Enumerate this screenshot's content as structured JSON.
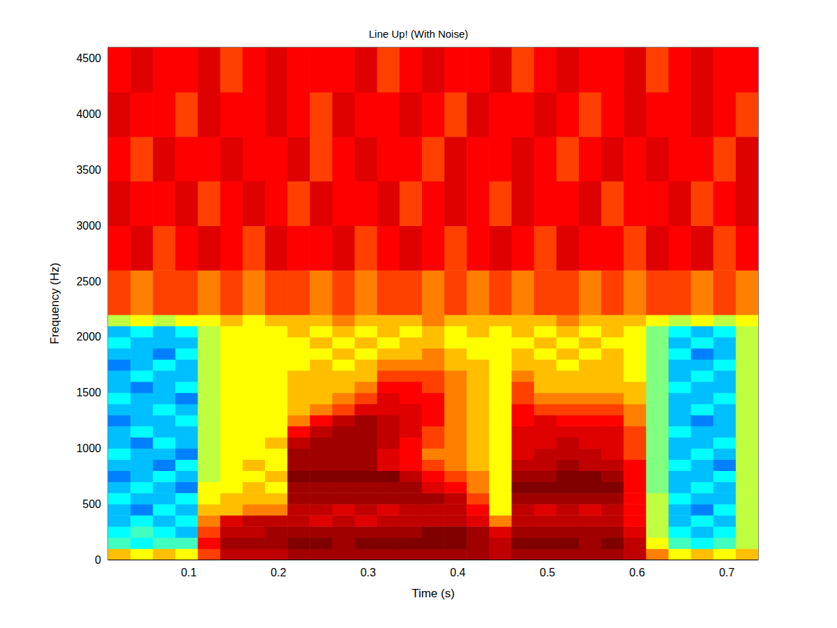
{
  "chart_data": {
    "type": "heatmap",
    "title": "Line Up! (With Noise)",
    "x_label": "Time (s)",
    "y_label": "Frequency (Hz)",
    "xlim": [
      0.01,
      0.735
    ],
    "xticks": [
      0.1,
      0.2,
      0.3,
      0.4,
      0.5,
      0.6,
      0.7
    ],
    "ylim": [
      0,
      4600
    ],
    "yticks": [
      0,
      500,
      1000,
      1500,
      2000,
      2500,
      3000,
      3500,
      4000,
      4500
    ],
    "grid": false,
    "color_range": [
      0,
      10
    ],
    "time_edges": [
      0.01,
      0.035,
      0.06,
      0.085,
      0.11,
      0.135,
      0.16,
      0.185,
      0.21,
      0.235,
      0.26,
      0.285,
      0.31,
      0.335,
      0.36,
      0.385,
      0.41,
      0.435,
      0.46,
      0.485,
      0.51,
      0.535,
      0.56,
      0.585,
      0.61,
      0.635,
      0.66,
      0.685,
      0.71,
      0.735
    ],
    "frequency_edges": [
      0,
      100,
      200,
      300,
      400,
      500,
      600,
      700,
      800,
      900,
      1000,
      1100,
      1200,
      1300,
      1400,
      1500,
      1600,
      1700,
      1800,
      1900,
      2000,
      2100,
      2200,
      2600,
      3000,
      3400,
      3800,
      4200,
      4600
    ],
    "cells": [
      [
        6.5,
        6,
        6.5,
        6,
        7.5,
        9,
        9,
        9,
        9.5,
        9.5,
        9.5,
        9.5,
        9.5,
        9.5,
        9.5,
        9.5,
        9.5,
        9,
        9.5,
        9.5,
        9.5,
        9.5,
        9.5,
        9,
        7,
        6,
        6.5,
        6,
        6.5
      ],
      [
        4.5,
        4,
        4.5,
        4.5,
        8,
        9.5,
        9.5,
        9.5,
        10,
        10,
        9.5,
        10,
        10,
        10,
        10,
        10,
        9.5,
        9,
        10,
        10,
        10,
        9.5,
        10,
        9,
        6,
        4.5,
        4,
        4.5,
        5.5
      ],
      [
        4,
        4.5,
        4,
        3.5,
        7.5,
        9,
        9,
        9.5,
        9.5,
        9.5,
        9.5,
        9.5,
        9.5,
        9.5,
        10,
        10,
        9.5,
        8.5,
        9.5,
        9.5,
        9.5,
        9.5,
        9.5,
        8.5,
        5.5,
        4,
        3.5,
        4,
        5.5
      ],
      [
        3.5,
        4,
        3.5,
        4,
        7,
        8.5,
        9,
        9,
        9,
        8.5,
        9,
        8.5,
        9,
        9,
        9,
        9,
        8.5,
        7,
        9,
        9,
        9,
        9,
        9,
        8,
        5.5,
        3.5,
        4,
        3.5,
        5.5
      ],
      [
        3.5,
        3,
        4,
        3.5,
        6.5,
        6.5,
        7,
        7,
        9,
        9,
        8.5,
        9,
        8.5,
        9,
        9,
        9,
        8,
        6,
        9,
        8.5,
        9,
        8.5,
        9,
        8,
        5.5,
        3.5,
        3,
        4,
        5.5
      ],
      [
        4,
        3.5,
        3.5,
        4,
        6,
        6.5,
        6.5,
        6.5,
        9.5,
        9.5,
        9.5,
        9.5,
        9.5,
        9.5,
        9.5,
        9,
        7.5,
        6,
        9.5,
        9.5,
        9.5,
        9.5,
        9.5,
        8,
        5.5,
        4,
        3.5,
        3.5,
        5.5
      ],
      [
        3.5,
        4,
        3.5,
        3,
        6,
        6,
        6.5,
        6,
        9.5,
        9.5,
        9.5,
        9.5,
        9.5,
        9.5,
        8.5,
        8,
        7,
        6,
        10,
        10,
        10,
        10,
        10,
        8,
        5,
        3.5,
        4,
        3.5,
        5.5
      ],
      [
        3,
        3.5,
        4,
        3.5,
        5.5,
        6,
        6,
        6.5,
        10,
        10,
        10,
        10,
        10,
        9,
        8,
        7.5,
        7,
        6,
        9.5,
        9.5,
        10,
        10,
        9.5,
        8,
        5,
        3.5,
        3.5,
        4,
        5.5
      ],
      [
        3.5,
        3.5,
        3,
        4,
        5.5,
        6,
        6.5,
        6,
        9.5,
        9.5,
        9.5,
        9.5,
        8.5,
        8,
        7.5,
        7,
        6.5,
        6,
        9,
        9,
        9.5,
        9,
        9,
        8,
        5,
        4,
        3.5,
        3,
        5.5
      ],
      [
        4,
        3.5,
        3.5,
        3,
        5.5,
        6,
        6,
        6,
        9.5,
        9.5,
        9.5,
        9.5,
        8.5,
        8,
        7,
        7,
        6.5,
        6,
        8.5,
        9,
        9,
        9,
        8.5,
        7.5,
        5,
        3.5,
        4,
        3.5,
        5.5
      ],
      [
        3.5,
        3,
        4,
        3.5,
        5.5,
        6,
        6,
        6.5,
        9,
        9.5,
        9.5,
        9.5,
        9,
        8,
        7.5,
        7,
        6.5,
        6,
        8.5,
        8.5,
        9,
        8.5,
        8.5,
        7.5,
        5,
        3.5,
        3.5,
        4,
        5.5
      ],
      [
        3.5,
        4,
        3.5,
        3.5,
        5.5,
        6,
        6,
        6,
        8,
        9,
        9.5,
        9.5,
        9,
        8.5,
        7.5,
        7,
        6.5,
        6,
        8.5,
        8.5,
        8.5,
        8.5,
        8.5,
        7.5,
        5,
        4,
        3.5,
        3.5,
        5.5
      ],
      [
        3,
        3.5,
        3.5,
        4,
        5.5,
        6,
        6,
        6,
        7,
        8,
        9,
        9.5,
        9,
        8.5,
        8,
        7,
        6.5,
        6,
        8,
        8.5,
        8,
        8,
        8,
        7,
        5,
        3.5,
        3,
        3.5,
        5.5
      ],
      [
        3.5,
        3.5,
        4,
        3.5,
        5.5,
        6,
        6,
        6,
        6.5,
        7,
        7.5,
        8.5,
        8.5,
        8.5,
        8,
        7,
        6.5,
        6,
        8,
        7.5,
        7.5,
        7.5,
        7.5,
        7,
        5,
        3.5,
        4,
        3.5,
        5.5
      ],
      [
        4,
        3.5,
        3.5,
        3,
        5.5,
        6,
        6,
        6,
        6.5,
        6.5,
        7,
        7.5,
        8.5,
        8,
        8,
        7,
        6.5,
        6,
        7.5,
        7,
        7,
        7,
        7,
        6.5,
        5,
        3.5,
        3.5,
        4,
        5.5
      ],
      [
        3.5,
        3,
        3.5,
        4,
        5.5,
        6,
        6,
        6,
        6.5,
        6.5,
        6.5,
        7,
        8,
        8,
        7.5,
        7,
        6.5,
        6,
        7.5,
        6.5,
        6.5,
        6.5,
        6.5,
        6.5,
        5,
        4,
        3.5,
        3.5,
        5.5
      ],
      [
        3.5,
        4,
        3.5,
        3.5,
        5.5,
        6,
        6,
        6,
        6.5,
        6.5,
        6.5,
        6.5,
        7.5,
        7.5,
        7.5,
        7,
        6.5,
        6,
        7,
        6.5,
        6.5,
        6.5,
        6.5,
        6,
        5,
        3.5,
        4,
        3.5,
        5.5
      ],
      [
        3,
        3.5,
        4,
        3.5,
        5.5,
        6,
        6,
        6,
        6,
        6.5,
        6,
        6.5,
        7,
        7,
        7,
        6.5,
        6.5,
        6,
        6.5,
        6.5,
        6,
        6.5,
        6.5,
        6,
        5,
        3.5,
        3.5,
        4,
        5.5
      ],
      [
        3.5,
        3.5,
        3,
        4,
        5.5,
        6,
        6,
        6,
        6,
        6,
        6.5,
        6,
        6.5,
        6.5,
        7,
        6.5,
        6,
        6,
        6.5,
        6,
        6.5,
        6,
        6.5,
        6,
        5,
        4,
        3,
        3.5,
        5.5
      ],
      [
        4,
        3.5,
        3.5,
        3.5,
        5.5,
        6,
        6,
        6,
        6,
        6.5,
        6,
        6.5,
        6,
        6.5,
        6.5,
        6,
        6,
        6,
        6,
        6.5,
        6,
        6.5,
        6,
        6,
        5,
        3.5,
        4,
        3.5,
        5.5
      ],
      [
        3.5,
        4,
        3.5,
        4,
        5.5,
        6,
        6,
        6,
        6.5,
        6,
        6.5,
        6,
        6.5,
        6,
        6.5,
        6,
        6.5,
        6,
        6.5,
        6,
        6.5,
        6,
        6.5,
        6,
        5,
        4,
        3.5,
        4,
        5.5
      ],
      [
        5.5,
        6,
        5.5,
        6,
        6,
        6.5,
        6,
        6.5,
        6.5,
        6.5,
        7,
        6.5,
        6.5,
        6.5,
        7,
        6.5,
        6.5,
        6.5,
        6.5,
        6.5,
        7,
        6.5,
        6.5,
        6.5,
        6,
        5.5,
        6,
        5.5,
        6
      ],
      [
        7.5,
        7,
        7.5,
        7.5,
        7,
        7.5,
        7,
        7.5,
        7.5,
        7,
        7.5,
        7,
        7.5,
        7.5,
        7,
        7.5,
        7,
        7.5,
        7,
        7.5,
        7.5,
        7,
        7.5,
        7,
        7.5,
        7.5,
        7,
        7.5,
        7
      ],
      [
        8,
        8.5,
        7.5,
        8,
        8.5,
        8,
        7.5,
        8.5,
        8,
        8,
        8.5,
        7.5,
        8,
        8.5,
        8,
        7.5,
        8,
        8.5,
        8,
        7.5,
        8.5,
        8,
        8,
        7.5,
        8.5,
        8,
        8.5,
        7.5,
        8
      ],
      [
        8.5,
        8,
        8,
        8.5,
        7.5,
        8,
        8.5,
        8,
        7.5,
        8.5,
        8,
        8,
        8.5,
        7.5,
        8,
        8.5,
        8,
        7.5,
        8.5,
        8,
        8,
        8.5,
        7.5,
        8,
        8,
        8.5,
        7.5,
        8,
        8.5
      ],
      [
        8,
        7.5,
        8.5,
        8,
        8,
        8.5,
        8,
        8,
        8.5,
        7.5,
        8,
        8.5,
        8,
        8,
        7.5,
        8.5,
        8,
        8,
        8.5,
        8,
        7.5,
        8,
        8.5,
        8,
        8.5,
        8,
        8,
        7.5,
        8.5
      ],
      [
        8.5,
        8,
        8,
        7.5,
        8.5,
        8,
        8,
        8.5,
        8,
        7.5,
        8.5,
        8,
        8,
        8.5,
        8,
        7.5,
        8.5,
        8,
        8,
        8.5,
        8,
        7.5,
        8,
        8.5,
        8,
        8,
        8.5,
        8,
        7.5
      ],
      [
        8,
        8.5,
        8,
        8,
        8.5,
        7.5,
        8,
        8.5,
        8,
        8,
        8,
        8.5,
        7.5,
        8,
        8.5,
        8,
        8,
        8.5,
        7.5,
        8,
        8.5,
        8,
        8,
        8.5,
        7.5,
        8,
        8.5,
        8,
        8
      ]
    ]
  }
}
